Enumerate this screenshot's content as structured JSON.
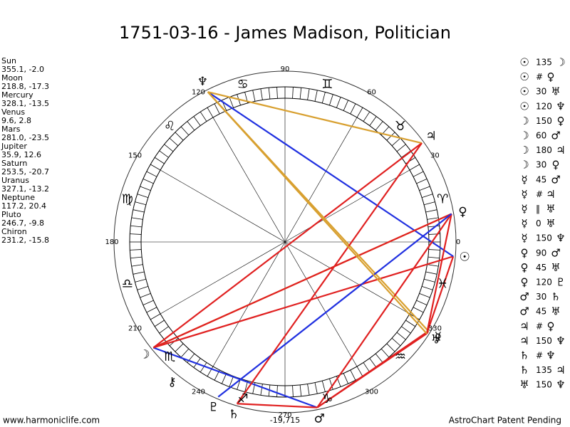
{
  "header": {
    "title": "1751-03-16 - James Madison, Politician"
  },
  "planets": [
    {
      "name": "Sun",
      "glyph": "☉",
      "position": "355.1, -2.0",
      "longitude": 355.1
    },
    {
      "name": "Moon",
      "glyph": "☽",
      "position": "218.8, -17.3",
      "longitude": 218.8
    },
    {
      "name": "Mercury",
      "glyph": "☿",
      "position": "328.1, -13.5",
      "longitude": 328.1
    },
    {
      "name": "Venus",
      "glyph": "♀",
      "position": "9.6, 2.8",
      "longitude": 9.6
    },
    {
      "name": "Mars",
      "glyph": "♂",
      "position": "281.0, -23.5",
      "longitude": 281.0
    },
    {
      "name": "Jupiter",
      "glyph": "♃",
      "position": "35.9, 12.6",
      "longitude": 35.9
    },
    {
      "name": "Saturn",
      "glyph": "♄",
      "position": "253.5, -20.7",
      "longitude": 253.5
    },
    {
      "name": "Uranus",
      "glyph": "♅",
      "position": "327.1, -13.2",
      "longitude": 327.1
    },
    {
      "name": "Neptune",
      "glyph": "♆",
      "position": "117.2, 20.4",
      "longitude": 117.2
    },
    {
      "name": "Pluto",
      "glyph": "♇",
      "position": "246.7, -9.8",
      "longitude": 246.7
    },
    {
      "name": "Chiron",
      "glyph": "⚷",
      "position": "231.2, -15.8",
      "longitude": 231.2
    }
  ],
  "aspects": [
    {
      "from": "☉",
      "kind": "135",
      "to": "☽",
      "color": "#e02020"
    },
    {
      "from": "☉",
      "kind": "#",
      "to": "♀"
    },
    {
      "from": "☉",
      "kind": "30",
      "to": "♅",
      "color": "#e02020"
    },
    {
      "from": "☉",
      "kind": "120",
      "to": "♆",
      "color": "#2030e0"
    },
    {
      "from": "☽",
      "kind": "150",
      "to": "♀",
      "color": "#d8a030"
    },
    {
      "from": "☽",
      "kind": "60",
      "to": "♂",
      "color": "#2030e0"
    },
    {
      "from": "☽",
      "kind": "180",
      "to": "♃",
      "color": "#e02020"
    },
    {
      "from": "☽",
      "kind": "30",
      "to": "♀",
      "color": "#e02020"
    },
    {
      "from": "☿",
      "kind": "45",
      "to": "♂",
      "color": "#e02020"
    },
    {
      "from": "☿",
      "kind": "#",
      "to": "♃"
    },
    {
      "from": "☿",
      "kind": "‖",
      "to": "♅"
    },
    {
      "from": "☿",
      "kind": "0",
      "to": "♅",
      "color": "#e02020"
    },
    {
      "from": "☿",
      "kind": "150",
      "to": "♆",
      "color": "#d8a030"
    },
    {
      "from": "♀",
      "kind": "90",
      "to": "♂",
      "color": "#e02020"
    },
    {
      "from": "♀",
      "kind": "45",
      "to": "♅",
      "color": "#e02020"
    },
    {
      "from": "♀",
      "kind": "120",
      "to": "♇",
      "color": "#2030e0"
    },
    {
      "from": "♂",
      "kind": "30",
      "to": "♄",
      "color": "#e02020"
    },
    {
      "from": "♂",
      "kind": "45",
      "to": "♅",
      "color": "#e02020"
    },
    {
      "from": "♃",
      "kind": "#",
      "to": "♀"
    },
    {
      "from": "♃",
      "kind": "150",
      "to": "♆",
      "color": "#d8a030"
    },
    {
      "from": "♄",
      "kind": "#",
      "to": "♆"
    },
    {
      "from": "♄",
      "kind": "135",
      "to": "♃",
      "color": "#e02020"
    },
    {
      "from": "♅",
      "kind": "150",
      "to": "♆",
      "color": "#d8a030"
    }
  ],
  "degree_labels": [
    0,
    30,
    60,
    90,
    120,
    150,
    180,
    210,
    240,
    270,
    300,
    330
  ],
  "zodiac": [
    "♈",
    "♉",
    "♊",
    "♋",
    "♌",
    "♍",
    "♎",
    "♏",
    "♐",
    "♑",
    "♒",
    "♓"
  ],
  "bottom_value": "-19,715",
  "footer": {
    "left": "www.harmoniclife.com",
    "right": "AstroChart Patent Pending"
  }
}
